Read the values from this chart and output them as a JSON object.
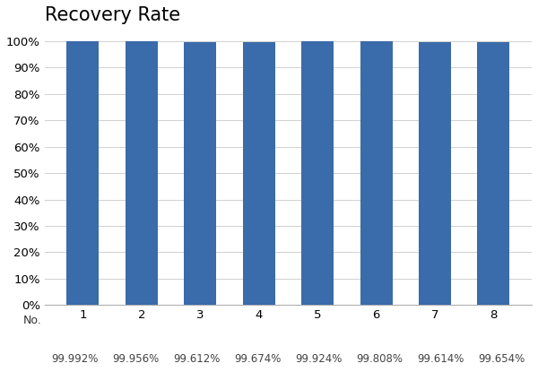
{
  "categories": [
    "1",
    "2",
    "3",
    "4",
    "5",
    "6",
    "7",
    "8"
  ],
  "values": [
    99.992,
    99.956,
    99.612,
    99.674,
    99.924,
    99.808,
    99.614,
    99.654
  ],
  "value_labels": [
    "99.992%",
    "99.956%",
    "99.612%",
    "99.674%",
    "99.924%",
    "99.808%",
    "99.614%",
    "99.654%"
  ],
  "bar_color": "#3A6BAA",
  "title": "Recovery Rate",
  "xlabel": "No.",
  "ylim_display": [
    0,
    100
  ],
  "ylim_actual": [
    0,
    103
  ],
  "yticks": [
    0,
    10,
    20,
    30,
    40,
    50,
    60,
    70,
    80,
    90,
    100
  ],
  "ytick_labels": [
    "0%",
    "10%",
    "20%",
    "30%",
    "40%",
    "50%",
    "60%",
    "70%",
    "80%",
    "90%",
    "100%"
  ],
  "title_fontsize": 15,
  "tick_fontsize": 9.5,
  "sublabel_fontsize": 8.5,
  "no_label_fontsize": 9,
  "background_color": "#ffffff",
  "grid_color": "#d0d0d0",
  "bar_width": 0.55
}
